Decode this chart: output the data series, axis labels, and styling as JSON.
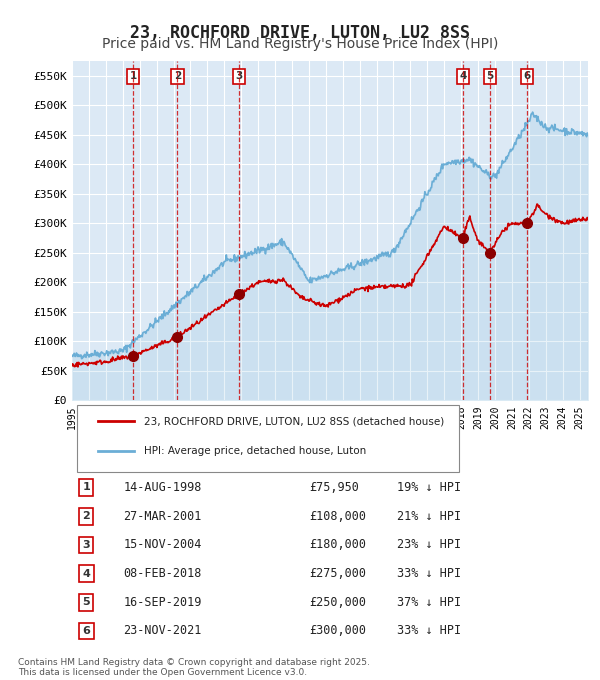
{
  "title": "23, ROCHFORD DRIVE, LUTON, LU2 8SS",
  "subtitle": "Price paid vs. HM Land Registry's House Price Index (HPI)",
  "title_fontsize": 12,
  "subtitle_fontsize": 10,
  "background_color": "#ffffff",
  "plot_bg_color": "#dce9f5",
  "grid_color": "#ffffff",
  "ylim": [
    0,
    575000
  ],
  "yticks": [
    0,
    50000,
    100000,
    150000,
    200000,
    250000,
    300000,
    350000,
    400000,
    450000,
    500000,
    550000
  ],
  "ytick_labels": [
    "£0",
    "£50K",
    "£100K",
    "£150K",
    "£200K",
    "£250K",
    "£300K",
    "£350K",
    "£400K",
    "£450K",
    "£500K",
    "£550K"
  ],
  "hpi_color": "#6baed6",
  "price_color": "#cc0000",
  "sale_marker_color": "#8b0000",
  "sale_marker_size": 7,
  "vline_color": "#cc0000",
  "vline_style": "--",
  "legend_label_price": "23, ROCHFORD DRIVE, LUTON, LU2 8SS (detached house)",
  "legend_label_hpi": "HPI: Average price, detached house, Luton",
  "sales": [
    {
      "num": 1,
      "date": "14-AUG-1998",
      "year": 1998.62,
      "price": 75950,
      "pct": "19%",
      "dir": "↓"
    },
    {
      "num": 2,
      "date": "27-MAR-2001",
      "year": 2001.23,
      "price": 108000,
      "pct": "21%",
      "dir": "↓"
    },
    {
      "num": 3,
      "date": "15-NOV-2004",
      "year": 2004.87,
      "price": 180000,
      "pct": "23%",
      "dir": "↓"
    },
    {
      "num": 4,
      "date": "08-FEB-2018",
      "year": 2018.1,
      "price": 275000,
      "pct": "33%",
      "dir": "↓"
    },
    {
      "num": 5,
      "date": "16-SEP-2019",
      "year": 2019.71,
      "price": 250000,
      "pct": "37%",
      "dir": "↓"
    },
    {
      "num": 6,
      "date": "23-NOV-2021",
      "year": 2021.89,
      "price": 300000,
      "pct": "33%",
      "dir": "↓"
    }
  ],
  "footer1": "Contains HM Land Registry data © Crown copyright and database right 2025.",
  "footer2": "This data is licensed under the Open Government Licence v3.0.",
  "xstart": 1995,
  "xend": 2025.5
}
